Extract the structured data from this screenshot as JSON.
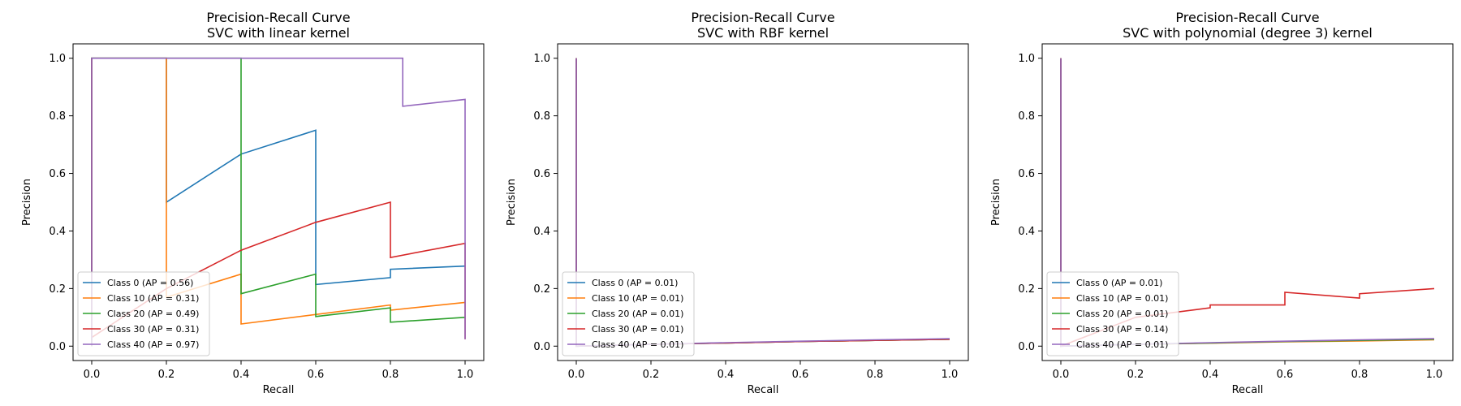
{
  "chart_data": [
    {
      "type": "line",
      "title": "Precision-Recall Curve",
      "subtitle": "SVC with linear kernel",
      "xlabel": "Recall",
      "ylabel": "Precision",
      "xlim": [
        -0.05,
        1.05
      ],
      "ylim": [
        -0.05,
        1.05
      ],
      "xticks": [
        0.0,
        0.2,
        0.4,
        0.6,
        0.8,
        1.0
      ],
      "yticks": [
        0.0,
        0.2,
        0.4,
        0.6,
        0.8,
        1.0
      ],
      "tick_labels": [
        "0.0",
        "0.2",
        "0.4",
        "0.6",
        "0.8",
        "1.0"
      ],
      "legend_position": "lower-left",
      "series": [
        {
          "name": "Class 0 (AP = 0.56)",
          "color": "#1f77b4",
          "x": [
            1.0,
            0.8,
            0.8,
            0.6,
            0.6,
            0.4,
            0.2,
            0.2,
            0.0,
            0.0
          ],
          "y": [
            0.278,
            0.267,
            0.238,
            0.214,
            0.75,
            0.667,
            0.5,
            1.0,
            1.0,
            0.0
          ]
        },
        {
          "name": "Class 10 (AP = 0.31)",
          "color": "#ff7f0e",
          "x": [
            1.0,
            0.8,
            0.8,
            0.4,
            0.4,
            0.2,
            0.2,
            0.0,
            0.0
          ],
          "y": [
            0.152,
            0.125,
            0.143,
            0.077,
            0.25,
            0.17,
            1.0,
            1.0,
            0.0
          ]
        },
        {
          "name": "Class 20 (AP = 0.49)",
          "color": "#2ca02c",
          "x": [
            1.0,
            0.8,
            0.8,
            0.6,
            0.6,
            0.4,
            0.4,
            0.0,
            0.0
          ],
          "y": [
            0.1,
            0.083,
            0.133,
            0.103,
            0.25,
            0.182,
            1.0,
            1.0,
            0.0
          ]
        },
        {
          "name": "Class 30 (AP = 0.31)",
          "color": "#d62728",
          "x": [
            1.0,
            1.0,
            0.8,
            0.8,
            0.6,
            0.4,
            0.2,
            0.0,
            0.0
          ],
          "y": [
            0.024,
            0.357,
            0.308,
            0.5,
            0.43,
            0.333,
            0.2,
            0.03,
            1.0
          ]
        },
        {
          "name": "Class 40 (AP = 0.97)",
          "color": "#9467bd",
          "x": [
            1.0,
            1.0,
            0.833,
            0.833,
            0.0,
            0.0
          ],
          "y": [
            0.024,
            0.857,
            0.833,
            1.0,
            1.0,
            0.0
          ]
        }
      ]
    },
    {
      "type": "line",
      "title": "Precision-Recall Curve",
      "subtitle": "SVC with RBF kernel",
      "xlabel": "Recall",
      "ylabel": "Precision",
      "xlim": [
        -0.05,
        1.05
      ],
      "ylim": [
        -0.05,
        1.05
      ],
      "xticks": [
        0.0,
        0.2,
        0.4,
        0.6,
        0.8,
        1.0
      ],
      "yticks": [
        0.0,
        0.2,
        0.4,
        0.6,
        0.8,
        1.0
      ],
      "tick_labels": [
        "0.0",
        "0.2",
        "0.4",
        "0.6",
        "0.8",
        "1.0"
      ],
      "legend_position": "lower-left",
      "series": [
        {
          "name": "Class 0 (AP = 0.01)",
          "color": "#1f77b4",
          "x": [
            1.0,
            0.8,
            0.6,
            0.4,
            0.2,
            0.0,
            0.0
          ],
          "y": [
            0.024,
            0.02,
            0.016,
            0.011,
            0.006,
            0.0,
            1.0
          ]
        },
        {
          "name": "Class 10 (AP = 0.01)",
          "color": "#ff7f0e",
          "x": [
            1.0,
            0.8,
            0.6,
            0.4,
            0.2,
            0.0,
            0.0
          ],
          "y": [
            0.024,
            0.02,
            0.016,
            0.011,
            0.006,
            0.0,
            1.0
          ]
        },
        {
          "name": "Class 20 (AP = 0.01)",
          "color": "#2ca02c",
          "x": [
            1.0,
            0.8,
            0.6,
            0.4,
            0.2,
            0.0,
            0.0
          ],
          "y": [
            0.024,
            0.02,
            0.016,
            0.011,
            0.006,
            0.0,
            1.0
          ]
        },
        {
          "name": "Class 30 (AP = 0.01)",
          "color": "#d62728",
          "x": [
            1.0,
            0.8,
            0.6,
            0.4,
            0.2,
            0.0,
            0.0
          ],
          "y": [
            0.024,
            0.02,
            0.016,
            0.011,
            0.006,
            0.0,
            1.0
          ]
        },
        {
          "name": "Class 40 (AP = 0.01)",
          "color": "#9467bd",
          "x": [
            1.0,
            0.8,
            0.6,
            0.4,
            0.2,
            0.0,
            0.0
          ],
          "y": [
            0.026,
            0.022,
            0.017,
            0.012,
            0.006,
            0.0,
            1.0
          ]
        }
      ]
    },
    {
      "type": "line",
      "title": "Precision-Recall Curve",
      "subtitle": "SVC with polynomial (degree 3) kernel",
      "xlabel": "Recall",
      "ylabel": "Precision",
      "xlim": [
        -0.05,
        1.05
      ],
      "ylim": [
        -0.05,
        1.05
      ],
      "xticks": [
        0.0,
        0.2,
        0.4,
        0.6,
        0.8,
        1.0
      ],
      "yticks": [
        0.0,
        0.2,
        0.4,
        0.6,
        0.8,
        1.0
      ],
      "tick_labels": [
        "0.0",
        "0.2",
        "0.4",
        "0.6",
        "0.8",
        "1.0"
      ],
      "legend_position": "lower-left",
      "series": [
        {
          "name": "Class 0 (AP = 0.01)",
          "color": "#1f77b4",
          "x": [
            1.0,
            0.8,
            0.6,
            0.4,
            0.2,
            0.0,
            0.0
          ],
          "y": [
            0.024,
            0.02,
            0.016,
            0.011,
            0.006,
            0.0,
            1.0
          ]
        },
        {
          "name": "Class 10 (AP = 0.01)",
          "color": "#ff7f0e",
          "x": [
            1.0,
            0.8,
            0.6,
            0.4,
            0.2,
            0.0,
            0.0
          ],
          "y": [
            0.022,
            0.018,
            0.015,
            0.01,
            0.006,
            0.0,
            1.0
          ]
        },
        {
          "name": "Class 20 (AP = 0.01)",
          "color": "#2ca02c",
          "x": [
            1.0,
            0.8,
            0.6,
            0.4,
            0.2,
            0.0,
            0.0
          ],
          "y": [
            0.024,
            0.02,
            0.016,
            0.011,
            0.006,
            0.0,
            1.0
          ]
        },
        {
          "name": "Class 30 (AP = 0.14)",
          "color": "#d62728",
          "x": [
            1.0,
            0.8,
            0.8,
            0.6,
            0.6,
            0.4,
            0.4,
            0.2,
            0.0,
            0.0
          ],
          "y": [
            0.2,
            0.182,
            0.167,
            0.187,
            0.143,
            0.143,
            0.133,
            0.1,
            0.0,
            1.0
          ]
        },
        {
          "name": "Class 40 (AP = 0.01)",
          "color": "#9467bd",
          "x": [
            1.0,
            0.8,
            0.6,
            0.4,
            0.2,
            0.0,
            0.0
          ],
          "y": [
            0.026,
            0.022,
            0.017,
            0.012,
            0.006,
            0.0,
            1.0
          ]
        }
      ]
    }
  ]
}
